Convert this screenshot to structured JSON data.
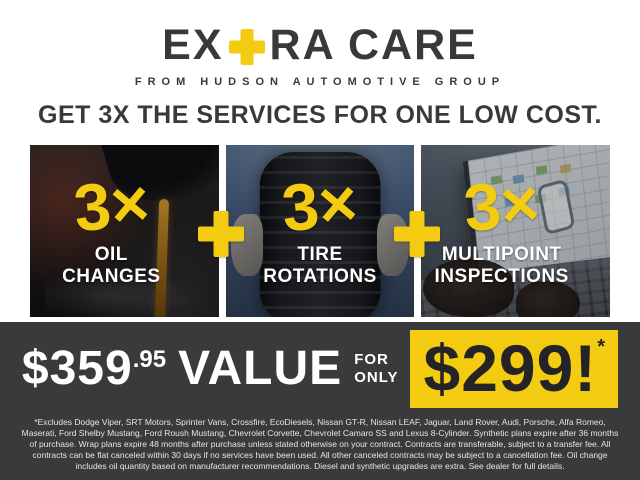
{
  "brand": {
    "logo_prefix": "EX",
    "logo_plus": "+",
    "logo_suffix": "RA CARE",
    "tagline": "FROM HUDSON AUTOMOTIVE GROUP"
  },
  "headline": "GET 3X THE SERVICES FOR ONE LOW COST.",
  "services": [
    {
      "multiplier": "3×",
      "label_line1": "OIL",
      "label_line2": "CHANGES",
      "photo": "oil-change-photo"
    },
    {
      "multiplier": "3×",
      "label_line1": "TIRE",
      "label_line2": "ROTATIONS",
      "photo": "tire-rotation-photo"
    },
    {
      "multiplier": "3×",
      "label_line1": "MULTIPOINT",
      "label_line2": "INSPECTIONS",
      "photo": "multipoint-inspection-photo"
    }
  ],
  "offer": {
    "value_price": "$359",
    "value_cents": ".95",
    "value_label": "VALUE",
    "for_line1": "FOR",
    "for_line2": "ONLY",
    "sale_price": "$299!",
    "sale_asterisk": "*"
  },
  "disclaimer": "*Excludes Dodge Viper, SRT Motors, Sprinter Vans, Crossfire, EcoDiesels, Nissan GT-R, Nissan LEAF, Jaguar, Land Rover, Audi, Porsche, Alfa Romeo, Maserati, Ford Shelby Mustang, Ford Roush Mustang, Chevrolet Corvette, Chevrolet Camaro SS and Lexus 8-Cylinder. Synthetic plans expire after 36 months of purchase. Wrap plans expire 48 months after purchase unless stated otherwise on your contract. Contracts are transferable, subject to a transfer fee. All contracts can be flat canceled within 30 days if no services have been used. All other canceled contracts may be subject to a cancellation fee. Oil change includes oil quantity based on manufacturer recommendations. Diesel and synthetic upgrades are extra. See dealer for full details.",
  "colors": {
    "accent_yellow": "#F3CC12",
    "charcoal": "#3A3A3C",
    "text_dark": "#38393B",
    "white": "#FFFFFF"
  }
}
